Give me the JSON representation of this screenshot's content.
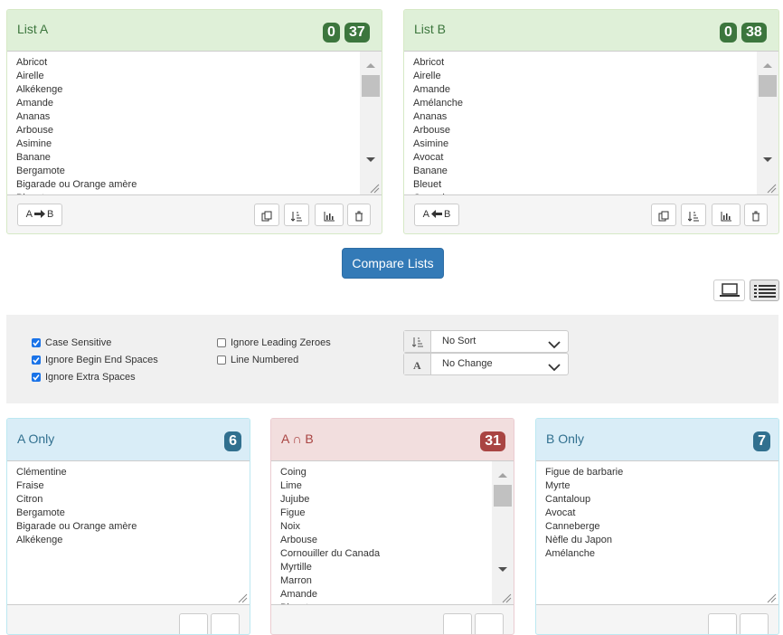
{
  "list_a": {
    "title": "List A",
    "badges": [
      0,
      37
    ],
    "items": [
      "Abricot",
      "Airelle",
      "Alkékenge",
      "Amande",
      "Ananas",
      "Arbouse",
      "Asimine",
      "Banane",
      "Bergamote",
      "Bigarade ou Orange amère",
      "Bleuet"
    ],
    "button": [
      "A",
      "B"
    ]
  },
  "list_b": {
    "title": "List B",
    "badges": [
      0,
      38
    ],
    "items": [
      "Abricot",
      "Airelle",
      "Amande",
      "Amélanche",
      "Ananas",
      "Arbouse",
      "Asimine",
      "Avocat",
      "Banane",
      "Bleuet",
      "Canneberge"
    ],
    "button": [
      "A",
      "B"
    ]
  },
  "compare_button": "Compare Lists",
  "options": {
    "checkbox_columns": [
      [
        {
          "label": "Case Sensitive",
          "checked": true
        },
        {
          "label": "Ignore Begin End Spaces",
          "checked": true
        },
        {
          "label": "Ignore Extra Spaces",
          "checked": true
        }
      ],
      [
        {
          "label": "Ignore Leading Zeroes",
          "checked": false
        },
        {
          "label": "Line Numbered",
          "checked": false
        }
      ]
    ],
    "selects": [
      "No Sort",
      "No Change"
    ]
  },
  "results": [
    {
      "title": "A Only",
      "count": 6,
      "items": [
        "Clémentine",
        "Fraise",
        "Citron",
        "Bergamote",
        "Bigarade ou Orange amère",
        "Alkékenge"
      ]
    },
    {
      "title": "A ∩ B",
      "count": 31,
      "items": [
        "Coing",
        "Lime",
        "Jujube",
        "Figue",
        "Noix",
        "Arbouse",
        "Cornouiller du Canada",
        "Myrtille",
        "Marron",
        "Amande",
        "Bleuet"
      ]
    },
    {
      "title": "B Only",
      "count": 7,
      "items": [
        "Figue de barbarie",
        "Myrte",
        "Cantaloup",
        "Avocat",
        "Canneberge",
        "Nèfle du Japon",
        "Amélanche"
      ]
    }
  ]
}
